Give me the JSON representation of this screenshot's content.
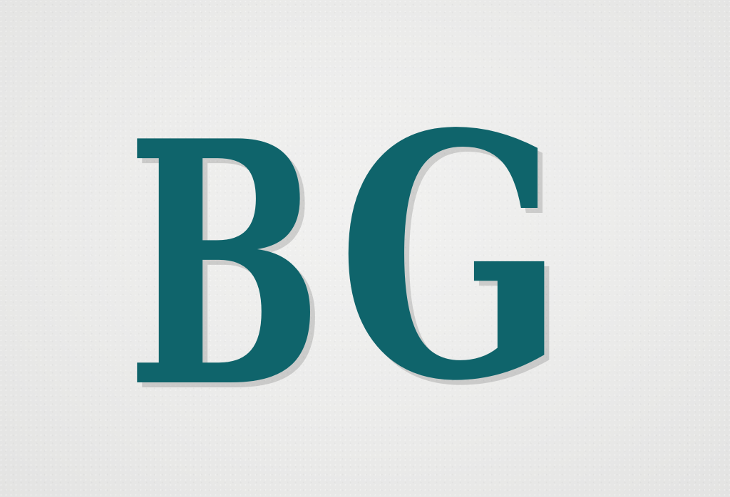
{
  "sign": {
    "text": "BG",
    "letters": [
      "B",
      "G"
    ],
    "color": "#0f646b",
    "wall_color": "#ececeb"
  }
}
